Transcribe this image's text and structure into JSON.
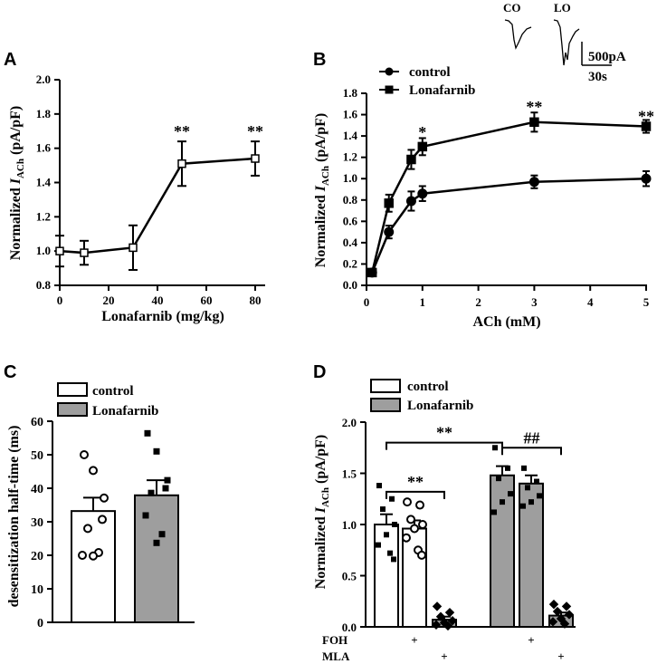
{
  "panels": {
    "A": {
      "letter": "A",
      "chart_data": {
        "type": "line",
        "xlabel": "Lonafarnib (mg/kg)",
        "ylabel_main": "Normalized ",
        "ylabel_italic": "I",
        "ylabel_sub": "ACh",
        "ylabel_units": " (pA/pF)",
        "xlim": [
          0,
          80
        ],
        "ylim": [
          0.8,
          2.0
        ],
        "xticks": [
          0,
          20,
          40,
          60,
          80
        ],
        "yticks": [
          0.8,
          1.0,
          1.2,
          1.4,
          1.6,
          1.8,
          2.0
        ],
        "points": [
          {
            "x": 0,
            "y": 1.0,
            "err": 0.09
          },
          {
            "x": 10,
            "y": 0.99,
            "err": 0.07
          },
          {
            "x": 30,
            "y": 1.02,
            "err": 0.13
          },
          {
            "x": 50,
            "y": 1.51,
            "err": 0.13
          },
          {
            "x": 80,
            "y": 1.54,
            "err": 0.1
          }
        ],
        "annotations": [
          {
            "x": 50,
            "y": 1.71,
            "text": "**"
          },
          {
            "x": 80,
            "y": 1.71,
            "text": "**"
          }
        ]
      }
    },
    "B": {
      "letter": "B",
      "chart_data": {
        "type": "line",
        "xlabel": "ACh (mM)",
        "ylabel_main": "Normalized ",
        "ylabel_italic": "I",
        "ylabel_sub": "ACh",
        "ylabel_units": " (pA/pF)",
        "xlim": [
          0,
          5
        ],
        "ylim": [
          0,
          1.8
        ],
        "xticks": [
          0,
          1,
          2,
          3,
          4,
          5
        ],
        "yticks": [
          0.0,
          0.2,
          0.4,
          0.6,
          0.8,
          1.0,
          1.2,
          1.4,
          1.6,
          1.8
        ],
        "series": [
          {
            "name": "control",
            "marker": "circle",
            "x": [
              0.1,
              0.4,
              0.8,
              1,
              3,
              5
            ],
            "y": [
              0.12,
              0.5,
              0.79,
              0.86,
              0.97,
              1.0
            ],
            "err": [
              0.03,
              0.06,
              0.09,
              0.07,
              0.06,
              0.07
            ]
          },
          {
            "name": "Lonafarnib",
            "marker": "square",
            "x": [
              0.1,
              0.4,
              0.8,
              1,
              3,
              5
            ],
            "y": [
              0.12,
              0.77,
              1.18,
              1.3,
              1.53,
              1.49
            ],
            "err": [
              0.03,
              0.08,
              0.09,
              0.08,
              0.09,
              0.06
            ]
          }
        ],
        "annotations": [
          {
            "x": 1,
            "y": 1.45,
            "text": "*"
          },
          {
            "x": 3,
            "y": 1.69,
            "text": "**"
          },
          {
            "x": 5,
            "y": 1.6,
            "text": "**"
          }
        ],
        "inset": {
          "trace1_label": "CO",
          "trace2_label": "LO",
          "scale_y": "500pA",
          "scale_x": "30s"
        }
      }
    },
    "C": {
      "letter": "C",
      "chart_data": {
        "type": "bar",
        "ylabel": "desensitization half-time (ms)",
        "ylim": [
          0,
          60
        ],
        "yticks": [
          0,
          10,
          20,
          30,
          40,
          50,
          60
        ],
        "bars": [
          {
            "name": "control",
            "value": 33.2,
            "err": 4.0,
            "fill": "#ffffff",
            "marker": "circle",
            "points": [
              50.0,
              45.3,
              30.7,
              37.1,
              28.0,
              20.0,
              20.8,
              19.8
            ]
          },
          {
            "name": "Lonafarnib",
            "value": 37.9,
            "err": 4.5,
            "fill": "#9e9e9e",
            "marker": "square",
            "points": [
              56.4,
              51.0,
              40.0,
              42.4,
              38.6,
              31.9,
              26.3,
              23.7
            ]
          }
        ]
      }
    },
    "D": {
      "letter": "D",
      "chart_data": {
        "type": "bar",
        "ylabel_main": "Normalized ",
        "ylabel_italic": "I",
        "ylabel_sub": "ACh",
        "ylabel_units": " (pA/pF)",
        "ylim": [
          0,
          2.0
        ],
        "yticks": [
          0.0,
          0.5,
          1.0,
          1.5,
          2.0
        ],
        "legend": [
          {
            "name": "control",
            "fill": "#ffffff"
          },
          {
            "name": "Lonafarnib",
            "fill": "#9e9e9e"
          }
        ],
        "bars": [
          {
            "group": "control",
            "FOH": "",
            "MLA": "",
            "value": 1.0,
            "err": 0.1,
            "fill": "#ffffff",
            "marker": "square",
            "points": [
              1.38,
              1.25,
              1.15,
              1.0,
              0.9,
              0.8,
              0.72,
              0.66
            ]
          },
          {
            "group": "control",
            "FOH": "+",
            "MLA": "",
            "value": 0.96,
            "err": 0.08,
            "fill": "#ffffff",
            "marker": "circle",
            "points": [
              1.22,
              1.19,
              1.05,
              1.0,
              0.96,
              0.87,
              0.75,
              0.7
            ]
          },
          {
            "group": "control",
            "FOH": "",
            "MLA": "+",
            "value": 0.07,
            "err": 0.03,
            "fill": "#9e9e9e",
            "marker": "diamond",
            "points": [
              0.2,
              0.14,
              0.1,
              0.06,
              0.04,
              0.02,
              0.01
            ]
          },
          {
            "group": "Lonafarnib",
            "FOH": "",
            "MLA": "",
            "value": 1.48,
            "err": 0.09,
            "fill": "#9e9e9e",
            "marker": "square",
            "points": [
              1.75,
              1.55,
              1.45,
              1.3,
              1.22,
              1.12
            ]
          },
          {
            "group": "Lonafarnib",
            "FOH": "+",
            "MLA": "",
            "value": 1.4,
            "err": 0.08,
            "fill": "#9e9e9e",
            "marker": "square",
            "points": [
              1.55,
              1.42,
              1.36,
              1.28,
              1.22,
              1.18
            ]
          },
          {
            "group": "Lonafarnib",
            "FOH": "",
            "MLA": "+",
            "value": 0.11,
            "err": 0.03,
            "fill": "#9e9e9e",
            "marker": "diamond",
            "points": [
              0.22,
              0.2,
              0.15,
              0.12,
              0.08,
              0.05,
              0.03
            ]
          }
        ],
        "row_labels": [
          "FOH",
          "MLA"
        ],
        "brackets": [
          {
            "from": 0,
            "to": 3,
            "y": 1.8,
            "text": "**"
          },
          {
            "from": 0,
            "to": 2,
            "y": 1.32,
            "text": "**"
          },
          {
            "from": 3,
            "to": 5,
            "y": 1.75,
            "text": "##"
          }
        ]
      }
    }
  }
}
